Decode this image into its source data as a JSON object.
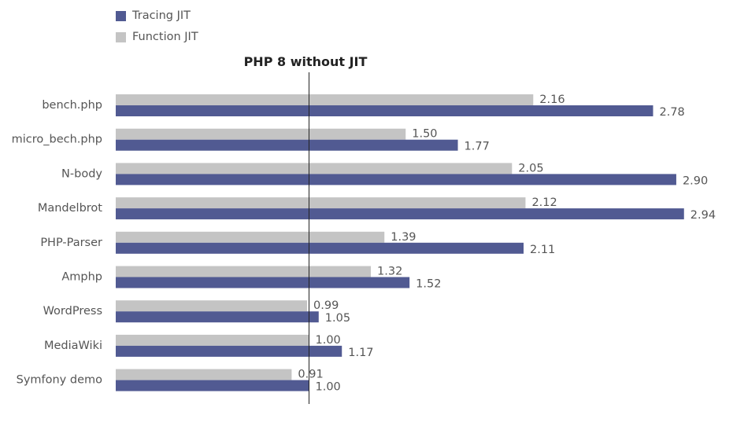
{
  "chart_data": {
    "type": "bar",
    "orientation": "horizontal",
    "categories": [
      "bench.php",
      "micro_bech.php",
      "N-body",
      "Mandelbrot",
      "PHP-Parser",
      "Amphp",
      "WordPress",
      "MediaWiki",
      "Symfony demo"
    ],
    "series": [
      {
        "name": "Function JIT",
        "color": "#c4c4c4",
        "values": [
          2.16,
          1.5,
          2.05,
          2.12,
          1.39,
          1.32,
          0.99,
          1.0,
          0.91
        ]
      },
      {
        "name": "Tracing JIT",
        "color": "#515a92",
        "values": [
          2.78,
          1.77,
          2.9,
          2.94,
          2.11,
          1.52,
          1.05,
          1.17,
          1.0
        ]
      }
    ],
    "reference_line": {
      "value": 1.0,
      "label": "PHP 8 without JIT"
    },
    "xlim": [
      0,
      3.0
    ],
    "legend": "top-left",
    "grid": false,
    "value_format": "2-decimals"
  },
  "legend": [
    {
      "name": "Tracing JIT",
      "color": "#515a92"
    },
    {
      "name": "Function JIT",
      "color": "#c4c4c4"
    }
  ]
}
